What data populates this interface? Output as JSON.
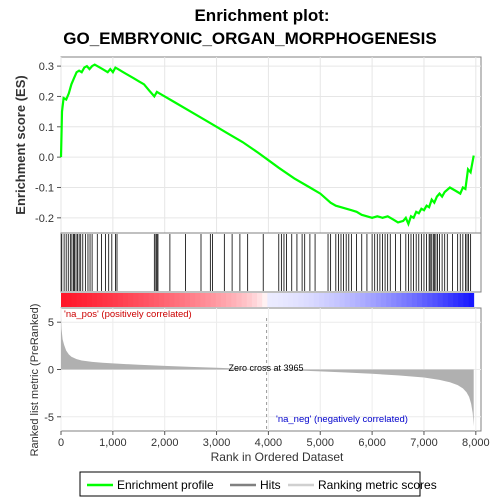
{
  "chart_data": {
    "type": "line",
    "title_line1": "Enrichment plot:",
    "title_line2": "GO_EMBRYONIC_ORGAN_MORPHOGENESIS",
    "es_panel": {
      "ylabel": "Enrichment score (ES)",
      "ylim": [
        -0.25,
        0.33
      ],
      "yticks": [
        -0.2,
        -0.1,
        0.0,
        0.1,
        0.2,
        0.3
      ],
      "ytick_labels": [
        "-0.2",
        "-0.1",
        "0.0",
        "0.1",
        "0.2",
        "0.3"
      ],
      "line_color": "#00ff00",
      "x": [
        0,
        20,
        50,
        100,
        150,
        200,
        250,
        300,
        350,
        400,
        450,
        500,
        550,
        600,
        650,
        700,
        800,
        900,
        950,
        1000,
        1050,
        1100,
        1200,
        1300,
        1400,
        1500,
        1600,
        1700,
        1800,
        1850,
        1900,
        2000,
        2200,
        2500,
        2800,
        3000,
        3200,
        3500,
        3800,
        4000,
        4200,
        4500,
        4800,
        5000,
        5200,
        5300,
        5400,
        5500,
        5600,
        5700,
        5800,
        5900,
        6000,
        6100,
        6200,
        6300,
        6400,
        6500,
        6600,
        6650,
        6700,
        6750,
        6800,
        6850,
        6900,
        6950,
        7000,
        7050,
        7100,
        7150,
        7200,
        7250,
        7300,
        7350,
        7400,
        7500,
        7600,
        7700,
        7750,
        7800,
        7850,
        7900,
        7960
      ],
      "y": [
        0.0,
        0.15,
        0.195,
        0.19,
        0.21,
        0.24,
        0.26,
        0.28,
        0.285,
        0.28,
        0.295,
        0.3,
        0.29,
        0.3,
        0.305,
        0.3,
        0.29,
        0.28,
        0.29,
        0.28,
        0.295,
        0.29,
        0.28,
        0.27,
        0.26,
        0.25,
        0.24,
        0.22,
        0.2,
        0.215,
        0.21,
        0.2,
        0.18,
        0.15,
        0.12,
        0.1,
        0.08,
        0.05,
        0.015,
        -0.01,
        -0.035,
        -0.07,
        -0.1,
        -0.12,
        -0.15,
        -0.16,
        -0.165,
        -0.17,
        -0.175,
        -0.18,
        -0.19,
        -0.195,
        -0.2,
        -0.195,
        -0.2,
        -0.195,
        -0.205,
        -0.215,
        -0.21,
        -0.2,
        -0.22,
        -0.195,
        -0.2,
        -0.18,
        -0.185,
        -0.17,
        -0.175,
        -0.16,
        -0.165,
        -0.14,
        -0.15,
        -0.13,
        -0.12,
        -0.13,
        -0.115,
        -0.1,
        -0.11,
        -0.12,
        -0.1,
        -0.105,
        -0.04,
        -0.05,
        0.005
      ]
    },
    "hits": [
      15,
      60,
      100,
      140,
      180,
      210,
      240,
      260,
      290,
      320,
      350,
      380,
      420,
      470,
      520,
      560,
      600,
      700,
      780,
      860,
      920,
      980,
      1050,
      1080,
      1800,
      1830,
      1850,
      1870,
      2100,
      2400,
      2700,
      2880,
      2920,
      3150,
      3300,
      3450,
      3600,
      3900,
      4200,
      4250,
      4300,
      4350,
      4450,
      4550,
      4650,
      4700,
      4800,
      4900,
      5150,
      5200,
      5300,
      5350,
      5400,
      5450,
      5500,
      5550,
      5600,
      5700,
      5800,
      5900,
      6000,
      6050,
      6100,
      6150,
      6200,
      6250,
      6300,
      6350,
      6450,
      6550,
      6650,
      6700,
      6750,
      6800,
      6850,
      6900,
      6950,
      7000,
      7050,
      7100,
      7120,
      7150,
      7180,
      7200,
      7230,
      7260,
      7300,
      7350,
      7400,
      7450,
      7550,
      7650,
      7700,
      7750,
      7800,
      7830,
      7860,
      7900
    ],
    "colorbar": {
      "label_pos": "'na_pos' (positively correlated)",
      "label_neg": "'na_neg' (negatively correlated)",
      "pos_color": "#ff0000",
      "neg_color": "#0000ff"
    },
    "ranked_panel": {
      "ylabel": "Ranked list metric (PreRanked)",
      "ylim": [
        -6.5,
        6.5
      ],
      "yticks": [
        -5,
        0,
        5
      ],
      "ytick_labels": [
        "-5",
        "0",
        "5"
      ],
      "zero_cross_label": "Zero cross at 3965",
      "zero_cross": 3965,
      "fill_color": "#b0b0b0",
      "x": [
        0,
        10,
        30,
        60,
        100,
        150,
        200,
        300,
        400,
        600,
        800,
        1000,
        1500,
        2000,
        2500,
        3000,
        3500,
        3965,
        4500,
        5000,
        5500,
        6000,
        6500,
        7000,
        7300,
        7500,
        7650,
        7750,
        7820,
        7870,
        7910,
        7940,
        7960
      ],
      "y": [
        5.5,
        4.3,
        3.2,
        2.6,
        2.0,
        1.6,
        1.35,
        1.1,
        0.95,
        0.8,
        0.72,
        0.65,
        0.5,
        0.38,
        0.27,
        0.18,
        0.08,
        0.0,
        -0.1,
        -0.2,
        -0.32,
        -0.45,
        -0.62,
        -0.85,
        -1.1,
        -1.35,
        -1.65,
        -2.0,
        -2.4,
        -2.9,
        -3.6,
        -4.6,
        -6.0
      ]
    },
    "xaxis": {
      "label": "Rank in Ordered Dataset",
      "xlim": [
        0,
        8100
      ],
      "n_genes": 7960,
      "xticks": [
        0,
        1000,
        2000,
        3000,
        4000,
        5000,
        6000,
        7000,
        8000
      ],
      "xtick_labels": [
        "0",
        "1,000",
        "2,000",
        "3,000",
        "4,000",
        "5,000",
        "6,000",
        "7,000",
        "8,000"
      ]
    },
    "legend": {
      "placement": "bottom",
      "items": [
        "Enrichment profile",
        "Hits",
        "Ranking metric scores"
      ]
    },
    "grid": true
  }
}
